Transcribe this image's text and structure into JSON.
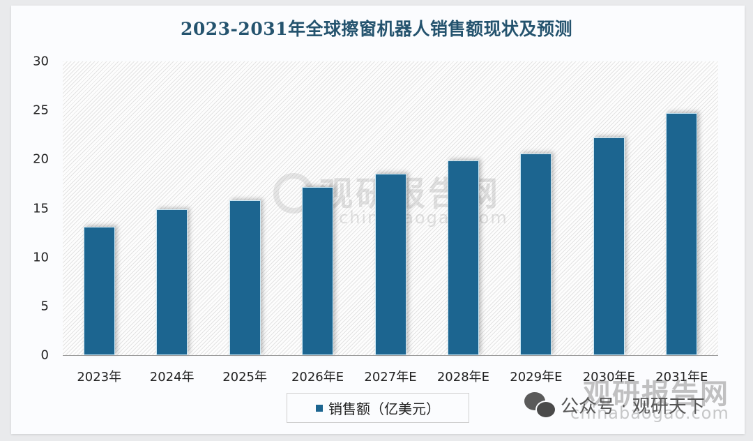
{
  "chart_data": {
    "type": "bar",
    "title": "2023-2031年全球擦窗机器人销售额现状及预测",
    "categories": [
      "2023年",
      "2024年",
      "2025年",
      "2026年E",
      "2027年E",
      "2028年E",
      "2029年E",
      "2030年E",
      "2031年E"
    ],
    "series": [
      {
        "name": "销售额（亿美元）",
        "values": [
          13.1,
          14.9,
          15.8,
          17.2,
          18.5,
          19.9,
          20.6,
          22.2,
          24.7
        ],
        "color": "#1c6590"
      }
    ],
    "xlabel": "",
    "ylabel": "",
    "ylim": [
      0,
      30
    ],
    "yticks": [
      0,
      5,
      10,
      15,
      20,
      25,
      30
    ],
    "grid": false,
    "legend_position": "bottom"
  },
  "title": "2023-2031年全球擦窗机器人销售额现状及预测",
  "yaxis": {
    "ticks": [
      "30",
      "25",
      "20",
      "15",
      "10",
      "5",
      "0"
    ]
  },
  "legend": {
    "label": "销售额（亿美元）"
  },
  "watermark": {
    "brand": "观研报告网",
    "url": "chinabaogao.com",
    "footer_account": "公众号 · 观研天下",
    "footer_brand": "观研报告网",
    "footer_url": "chinabaogao.com"
  },
  "colors": {
    "bar": "#1c6590",
    "title": "#24536e"
  }
}
